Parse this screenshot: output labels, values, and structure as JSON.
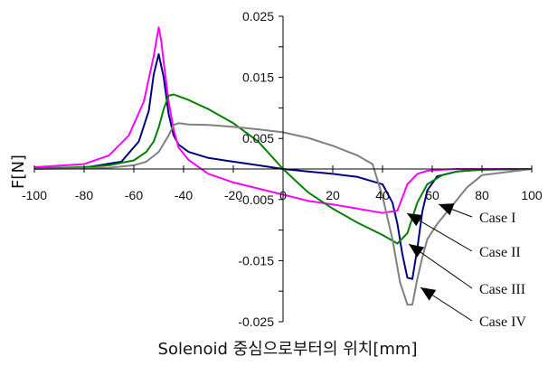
{
  "chart_data": {
    "type": "line",
    "xlabel": "Solenoid 중심으로부터의 위치[mm]",
    "ylabel": "F[N]",
    "xlim": [
      -100,
      100
    ],
    "ylim": [
      -0.025,
      0.025
    ],
    "x_ticks": [
      "-100",
      "-80",
      "-60",
      "-40",
      "-20",
      "0",
      "20",
      "40",
      "60",
      "80",
      "100"
    ],
    "y_ticks": [
      "0.025",
      "0.015",
      "0.005",
      "-0.005",
      "-0.015",
      "-0.025"
    ],
    "grid": false,
    "series": [
      {
        "name": "Case I",
        "color": "#000080",
        "x": [
          -100,
          -80,
          -65,
          -58,
          -54,
          -52,
          -50,
          -48,
          -46,
          -44,
          -42,
          -38,
          -30,
          -20,
          -10,
          0,
          10,
          20,
          30,
          40,
          44,
          46,
          48,
          50,
          52,
          54,
          56,
          58,
          62,
          70,
          80,
          100
        ],
        "y": [
          0.0001,
          0.0002,
          0.0012,
          0.0045,
          0.0095,
          0.0155,
          0.0188,
          0.015,
          0.009,
          0.0055,
          0.004,
          0.0028,
          0.0018,
          0.0012,
          0.0006,
          0.0,
          -0.0004,
          -0.0008,
          -0.0013,
          -0.0025,
          -0.0055,
          -0.009,
          -0.014,
          -0.0178,
          -0.018,
          -0.013,
          -0.007,
          -0.0035,
          -0.0012,
          -0.0004,
          -0.0001,
          0.0
        ]
      },
      {
        "name": "Case II",
        "color": "#ff00ff",
        "x": [
          -100,
          -80,
          -70,
          -62,
          -56,
          -52,
          -50,
          -49,
          -48,
          -46,
          -44,
          -42,
          -38,
          -30,
          -20,
          -10,
          0,
          10,
          20,
          30,
          40,
          46,
          50,
          54,
          58,
          64,
          70,
          80,
          100
        ],
        "y": [
          0.0003,
          0.0008,
          0.0022,
          0.0055,
          0.011,
          0.0185,
          0.0232,
          0.021,
          0.0175,
          0.011,
          0.0065,
          0.0035,
          0.0015,
          -0.0008,
          -0.0022,
          -0.0032,
          -0.0042,
          -0.0052,
          -0.0058,
          -0.0065,
          -0.0072,
          -0.0068,
          -0.0025,
          -0.0008,
          -0.0003,
          -0.0001,
          0.0,
          0.0,
          0.0
        ]
      },
      {
        "name": "Case III",
        "color": "#008000",
        "x": [
          -100,
          -80,
          -70,
          -60,
          -55,
          -52,
          -50,
          -48,
          -46,
          -44,
          -42,
          -38,
          -30,
          -20,
          -10,
          0,
          10,
          20,
          30,
          40,
          46,
          50,
          54,
          58,
          64,
          70,
          80,
          100
        ],
        "y": [
          0.0001,
          0.0003,
          0.0006,
          0.0014,
          0.0028,
          0.0045,
          0.0068,
          0.0098,
          0.012,
          0.0122,
          0.0119,
          0.0113,
          0.0098,
          0.0075,
          0.0045,
          0.0,
          -0.0038,
          -0.0065,
          -0.0088,
          -0.0108,
          -0.0122,
          -0.0105,
          -0.0055,
          -0.0025,
          -0.001,
          -0.0004,
          -0.0001,
          0.0
        ]
      },
      {
        "name": "Case IV",
        "color": "#808080",
        "x": [
          -100,
          -80,
          -70,
          -60,
          -55,
          -50,
          -46,
          -44,
          -42,
          -38,
          -30,
          -20,
          -10,
          0,
          10,
          20,
          30,
          36,
          40,
          44,
          47,
          50,
          52,
          54,
          56,
          58,
          62,
          68,
          74,
          80,
          100
        ],
        "y": [
          0.0,
          0.0001,
          0.0002,
          0.0006,
          0.0012,
          0.0028,
          0.0055,
          0.0072,
          0.0075,
          0.0073,
          0.0072,
          0.0069,
          0.0065,
          0.006,
          0.0051,
          0.0038,
          0.0022,
          0.0008,
          -0.0045,
          -0.0115,
          -0.0185,
          -0.0222,
          -0.0222,
          -0.018,
          -0.0145,
          -0.0115,
          -0.009,
          -0.006,
          -0.003,
          -0.001,
          0.0
        ]
      }
    ],
    "legend": [
      "Case I",
      "Case II",
      "Case III",
      "Case IV"
    ]
  }
}
